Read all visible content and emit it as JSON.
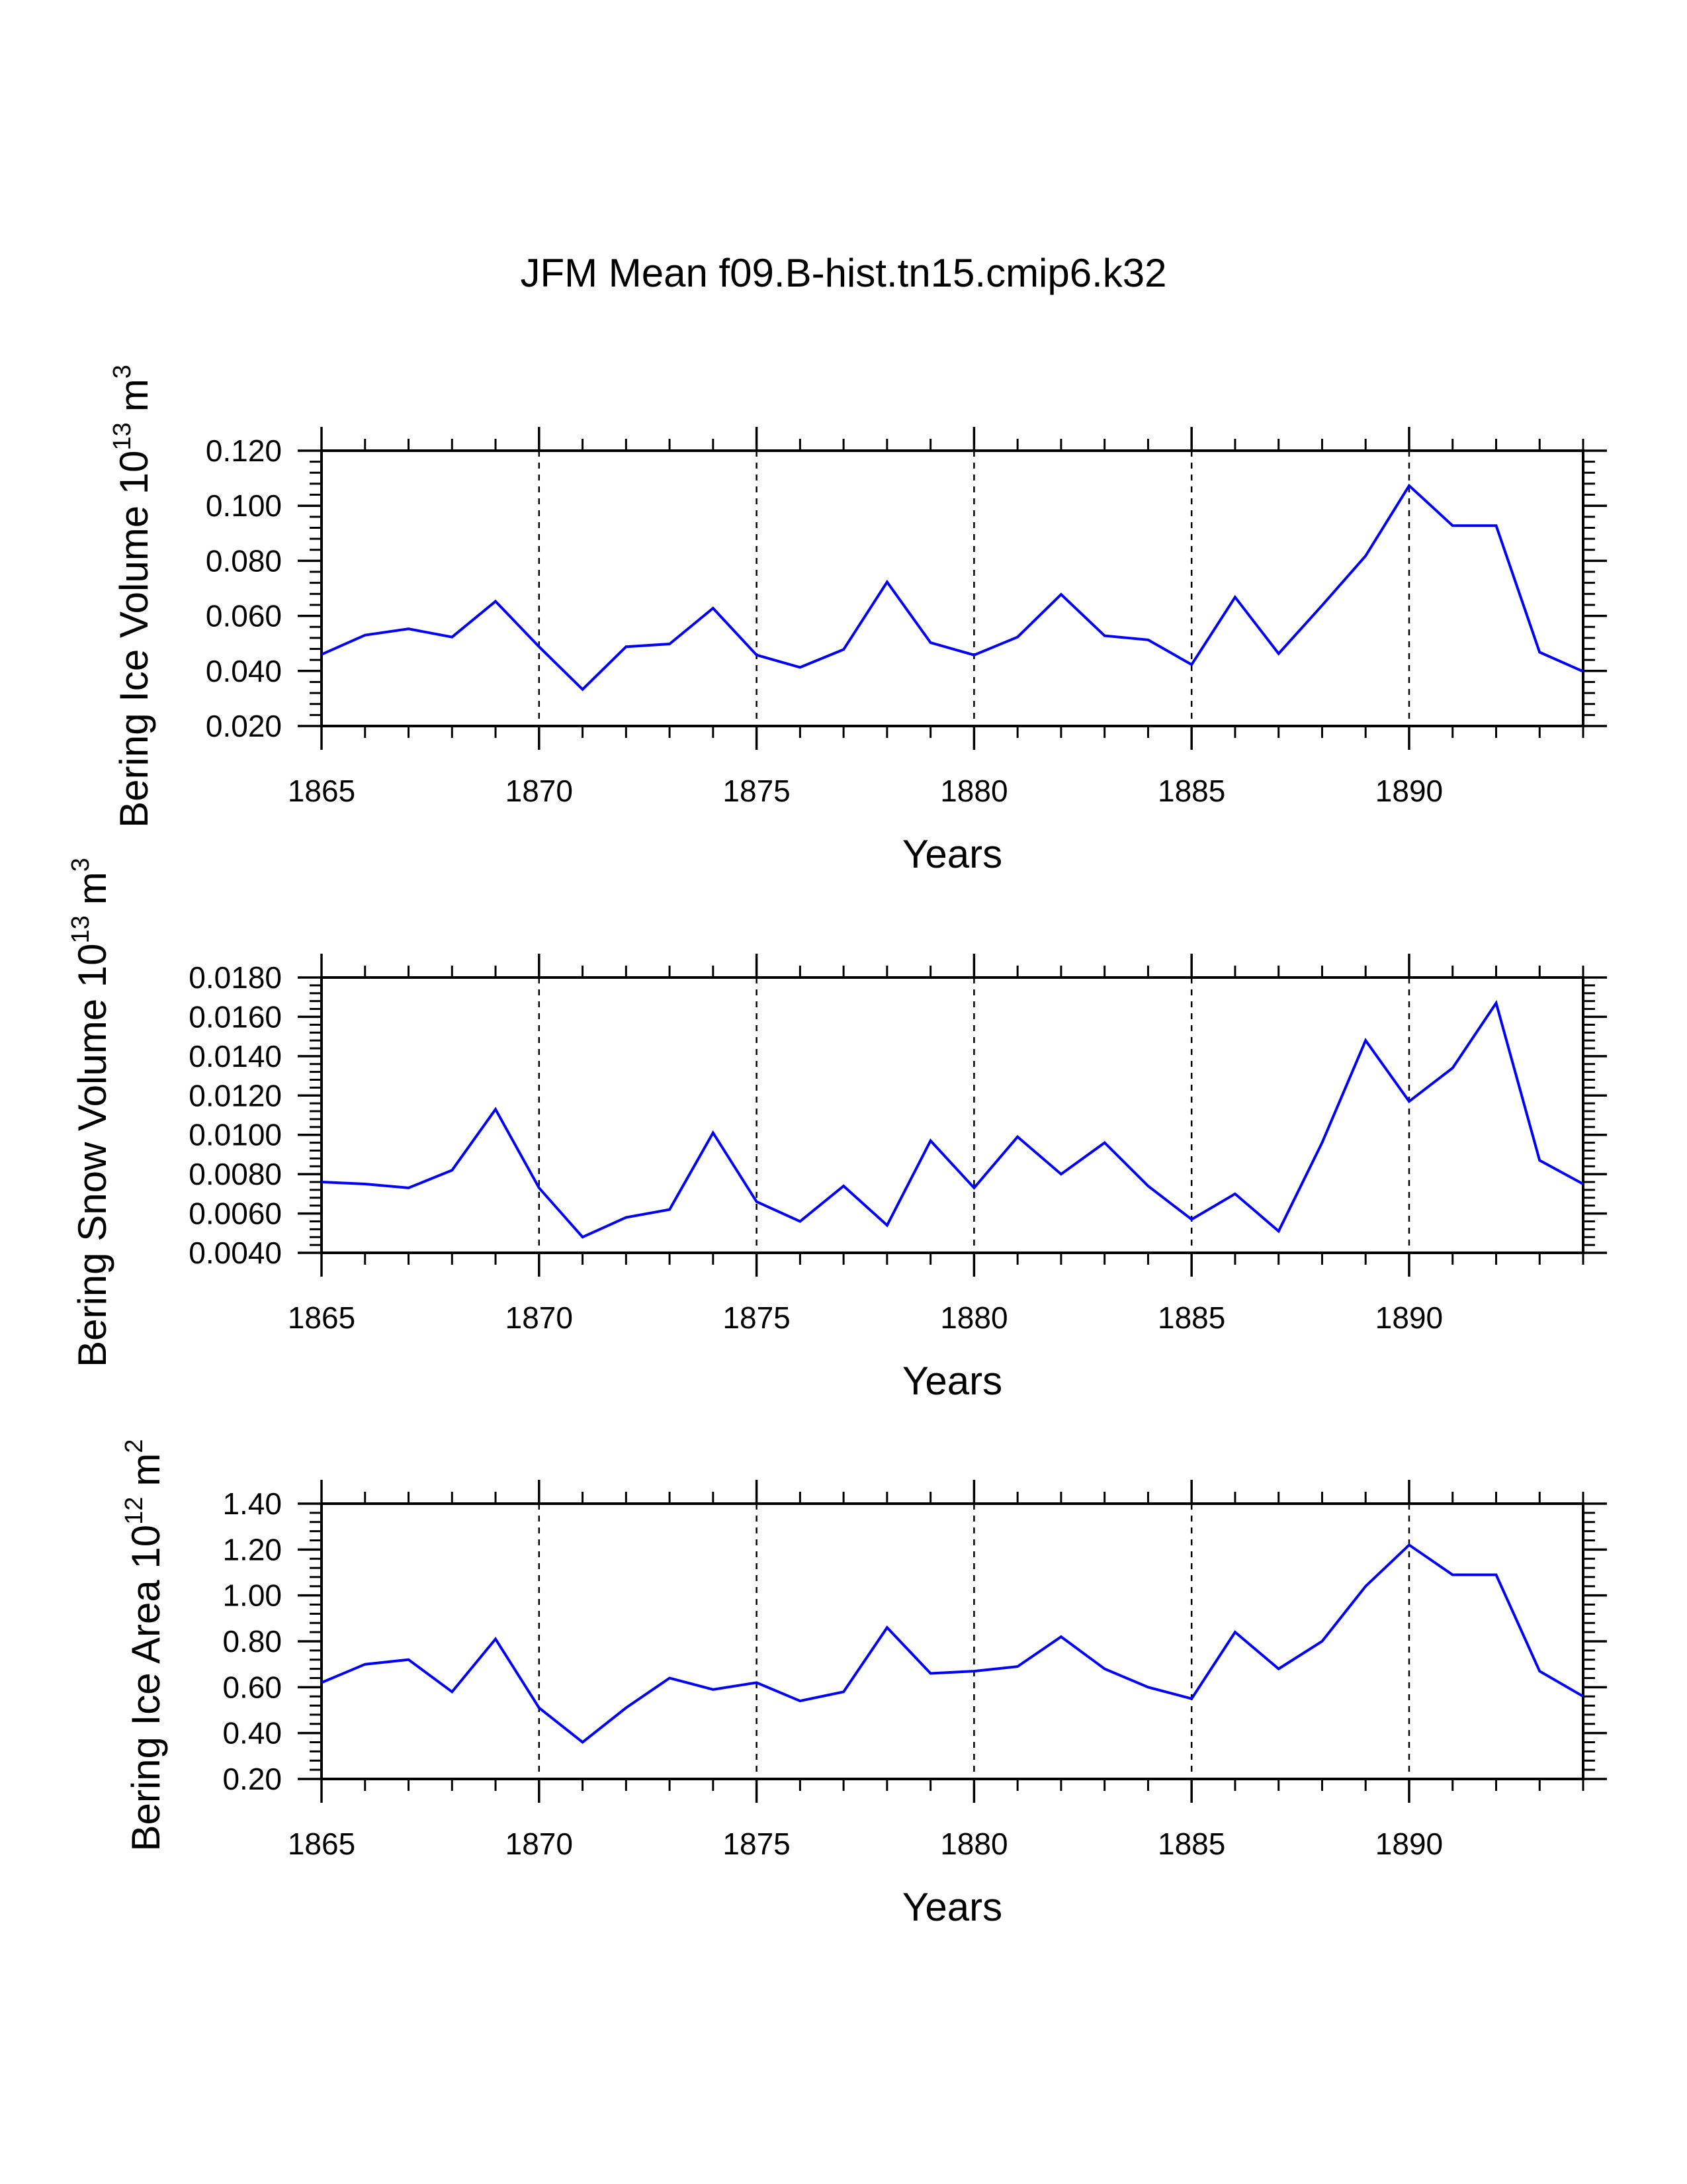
{
  "title": "JFM Mean f09.B-hist.tn15.cmip6.k32",
  "colors": {
    "line": "#0000ff",
    "axis": "#000000"
  },
  "chart_data": [
    {
      "type": "line",
      "ylabel": "Bering Ice Volume 10",
      "ylabel_exp": "13",
      "ylabel_unit": "m",
      "ylabel_unit_exp": "3",
      "xlabel": "Years",
      "xlim": [
        1865,
        1894
      ],
      "ylim": [
        0.02,
        0.12
      ],
      "yticks": [
        0.02,
        0.04,
        0.06,
        0.08,
        0.1,
        0.12
      ],
      "ytick_labels": [
        "0.020",
        "0.040",
        "0.060",
        "0.080",
        "0.100",
        "0.120"
      ],
      "xticks": [
        1865,
        1870,
        1875,
        1880,
        1885,
        1890
      ],
      "xtick_labels": [
        "1865",
        "1870",
        "1875",
        "1880",
        "1885",
        "1890"
      ],
      "x": [
        1865,
        1866,
        1867,
        1868,
        1869,
        1870,
        1871,
        1872,
        1873,
        1874,
        1875,
        1876,
        1877,
        1878,
        1879,
        1880,
        1881,
        1882,
        1883,
        1884,
        1885,
        1886,
        1887,
        1888,
        1889,
        1890,
        1891,
        1892,
        1893,
        1894
      ],
      "values": [
        0.046,
        0.053,
        0.0553,
        0.0523,
        0.0653,
        0.0488,
        0.0333,
        0.0488,
        0.0498,
        0.0628,
        0.0458,
        0.0413,
        0.0478,
        0.0723,
        0.0503,
        0.0458,
        0.0523,
        0.0678,
        0.0528,
        0.0513,
        0.0423,
        0.0668,
        0.0463,
        0.0638,
        0.0818,
        0.1073,
        0.0928,
        0.0928,
        0.0468,
        0.0398
      ]
    },
    {
      "type": "line",
      "ylabel": "Bering Snow Volume 10",
      "ylabel_exp": "13",
      "ylabel_unit": "m",
      "ylabel_unit_exp": "3",
      "xlabel": "Years",
      "xlim": [
        1865,
        1894
      ],
      "ylim": [
        0.004,
        0.018
      ],
      "yticks": [
        0.004,
        0.006,
        0.008,
        0.01,
        0.012,
        0.014,
        0.016,
        0.018
      ],
      "ytick_labels": [
        "0.0040",
        "0.0060",
        "0.0080",
        "0.0100",
        "0.0120",
        "0.0140",
        "0.0160",
        "0.0180"
      ],
      "xticks": [
        1865,
        1870,
        1875,
        1880,
        1885,
        1890
      ],
      "xtick_labels": [
        "1865",
        "1870",
        "1875",
        "1880",
        "1885",
        "1890"
      ],
      "x": [
        1865,
        1866,
        1867,
        1868,
        1869,
        1870,
        1871,
        1872,
        1873,
        1874,
        1875,
        1876,
        1877,
        1878,
        1879,
        1880,
        1881,
        1882,
        1883,
        1884,
        1885,
        1886,
        1887,
        1888,
        1889,
        1890,
        1891,
        1892,
        1893,
        1894
      ],
      "values": [
        0.0076,
        0.0075,
        0.0073,
        0.0082,
        0.0113,
        0.0073,
        0.0048,
        0.0058,
        0.0062,
        0.0101,
        0.0066,
        0.0056,
        0.0074,
        0.0054,
        0.0097,
        0.0073,
        0.0099,
        0.008,
        0.0096,
        0.0074,
        0.0057,
        0.007,
        0.0051,
        0.0096,
        0.0148,
        0.0117,
        0.0134,
        0.0167,
        0.0087,
        0.0075
      ]
    },
    {
      "type": "line",
      "ylabel": "Bering Ice Area 10",
      "ylabel_exp": "12",
      "ylabel_unit": "m",
      "ylabel_unit_exp": "2",
      "xlabel": "Years",
      "xlim": [
        1865,
        1894
      ],
      "ylim": [
        0.2,
        1.4
      ],
      "yticks": [
        0.2,
        0.4,
        0.6,
        0.8,
        1.0,
        1.2,
        1.4
      ],
      "ytick_labels": [
        "0.20",
        "0.40",
        "0.60",
        "0.80",
        "1.00",
        "1.20",
        "1.40"
      ],
      "xticks": [
        1865,
        1870,
        1875,
        1880,
        1885,
        1890
      ],
      "xtick_labels": [
        "1865",
        "1870",
        "1875",
        "1880",
        "1885",
        "1890"
      ],
      "x": [
        1865,
        1866,
        1867,
        1868,
        1869,
        1870,
        1871,
        1872,
        1873,
        1874,
        1875,
        1876,
        1877,
        1878,
        1879,
        1880,
        1881,
        1882,
        1883,
        1884,
        1885,
        1886,
        1887,
        1888,
        1889,
        1890,
        1891,
        1892,
        1893,
        1894
      ],
      "values": [
        0.62,
        0.7,
        0.72,
        0.58,
        0.81,
        0.51,
        0.36,
        0.51,
        0.64,
        0.59,
        0.62,
        0.54,
        0.58,
        0.86,
        0.66,
        0.67,
        0.69,
        0.82,
        0.68,
        0.6,
        0.55,
        0.84,
        0.68,
        0.8,
        1.04,
        1.22,
        1.09,
        1.09,
        0.67,
        0.56
      ]
    }
  ]
}
